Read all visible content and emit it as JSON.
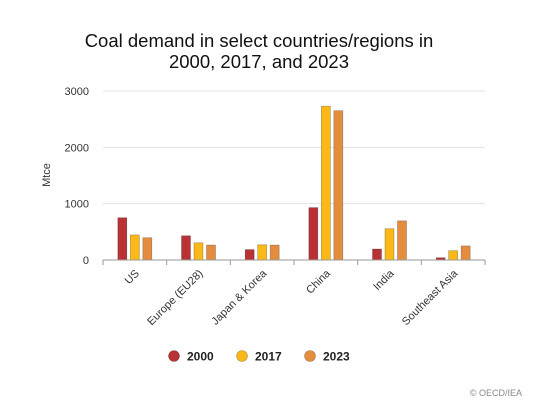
{
  "chart_data": {
    "type": "bar",
    "title_lines": [
      "Coal demand in select countries/regions in",
      "2000, 2017, and 2023"
    ],
    "categories": [
      "US",
      "Europe (EU28)",
      "Japan & Korea",
      "China",
      "India",
      "Southeast Asia"
    ],
    "series": [
      {
        "name": "2000",
        "color": "#b83235",
        "values": [
          750,
          430,
          185,
          930,
          195,
          40
        ]
      },
      {
        "name": "2017",
        "color": "#fbb917",
        "values": [
          445,
          305,
          270,
          2730,
          555,
          165
        ]
      },
      {
        "name": "2023",
        "color": "#e58d3e",
        "values": [
          395,
          265,
          265,
          2650,
          695,
          250
        ]
      }
    ],
    "ylabel": "Mtce",
    "ylim": [
      0,
      3000
    ],
    "yticks": [
      0,
      1000,
      2000,
      3000
    ],
    "ytick_labels": [
      "0",
      "1000",
      "2000",
      "3000"
    ],
    "grid": true,
    "legend_position": "bottom-center",
    "credit": "© OECD/IEA"
  }
}
